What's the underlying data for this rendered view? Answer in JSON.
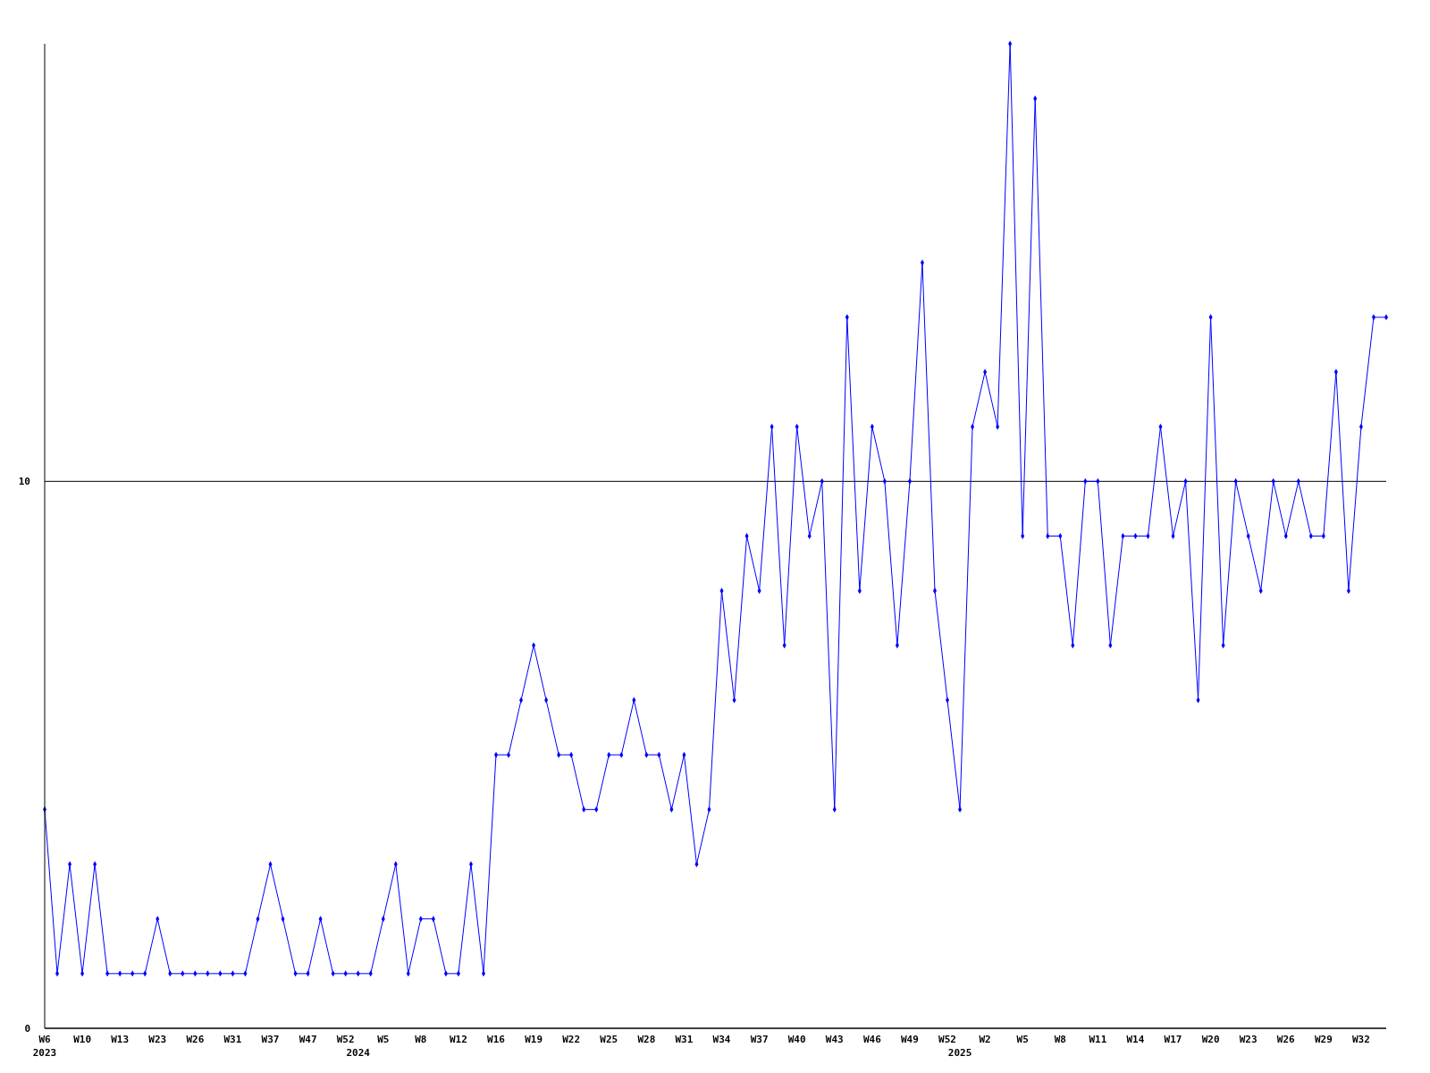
{
  "chart_data": {
    "type": "line",
    "categories": [
      "W6\n2023",
      null,
      null,
      "W10",
      null,
      null,
      "W13",
      null,
      null,
      "W23",
      null,
      null,
      "W26",
      null,
      null,
      "W31",
      null,
      null,
      "W37",
      null,
      null,
      "W47",
      null,
      null,
      "W52",
      "\n2024",
      null,
      "W5",
      null,
      null,
      "W8",
      null,
      null,
      "W12",
      null,
      null,
      "W16",
      null,
      null,
      "W19",
      null,
      null,
      "W22",
      null,
      null,
      "W25",
      null,
      null,
      "W28",
      null,
      null,
      "W31",
      null,
      null,
      "W34",
      null,
      null,
      "W37",
      null,
      null,
      "W40",
      null,
      null,
      "W43",
      null,
      null,
      "W46",
      null,
      null,
      "W49",
      null,
      null,
      "W52",
      "\n2025",
      null,
      "W2",
      null,
      null,
      "W5",
      null,
      null,
      "W8",
      null,
      null,
      "W11",
      null,
      null,
      "W14",
      null,
      null,
      "W17",
      null,
      null,
      "W20",
      null,
      null,
      "W23",
      null,
      null,
      "W26",
      null,
      null,
      "W29",
      null,
      null,
      "W32",
      null,
      null
    ],
    "series": [
      {
        "color": "#0000ff",
        "values": [
          4,
          1,
          3,
          1,
          3,
          1,
          1,
          1,
          1,
          2,
          1,
          1,
          1,
          1,
          1,
          1,
          1,
          2,
          3,
          2,
          1,
          1,
          2,
          1,
          1,
          1,
          1,
          2,
          3,
          1,
          2,
          2,
          1,
          1,
          3,
          1,
          5,
          5,
          6,
          7,
          6,
          5,
          5,
          4,
          4,
          5,
          5,
          6,
          5,
          5,
          4,
          5,
          3,
          4,
          8,
          6,
          9,
          8,
          11,
          7,
          11,
          9,
          10,
          4,
          13,
          8,
          11,
          10,
          7,
          10,
          14,
          8,
          6,
          4,
          11,
          12,
          11,
          18,
          9,
          17,
          9,
          9,
          7,
          10,
          10,
          7,
          9,
          9,
          9,
          11,
          9,
          10,
          6,
          13,
          7,
          10,
          9,
          8,
          10,
          9,
          10,
          9,
          9,
          12,
          8,
          11,
          13,
          13
        ]
      }
    ],
    "ylim": [
      0,
      18
    ],
    "yticks": [
      0,
      10
    ],
    "grid": "y",
    "marker": "diamond",
    "line_style": "solid"
  }
}
